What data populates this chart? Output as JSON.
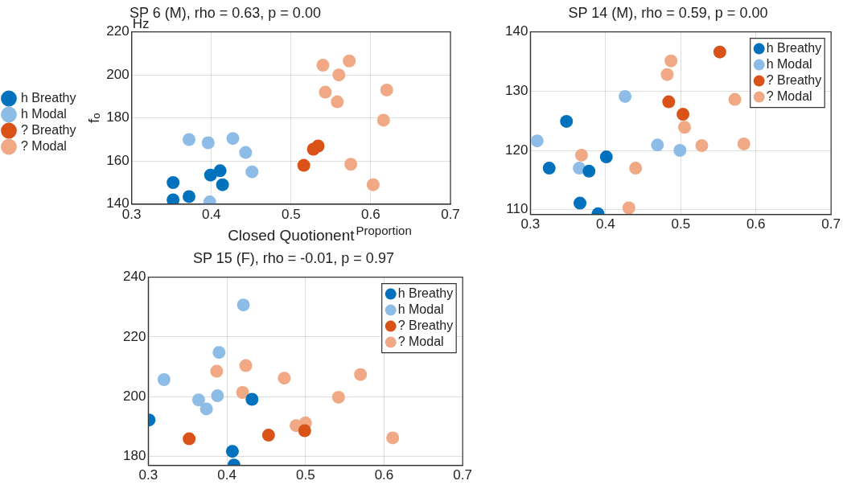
{
  "chart_data": [
    {
      "type": "scatter",
      "title": "SP 6 (M), rho = 0.63, p = 0.00",
      "xlabel": "Closed Quotionent",
      "ylabel": "fₒ",
      "annotations": [
        "Hz",
        "Proportion"
      ],
      "xlim": [
        0.3,
        0.7
      ],
      "xticks": [
        0.3,
        0.4,
        0.5,
        0.6,
        0.7
      ],
      "ylim": [
        140,
        220
      ],
      "yticks": [
        140,
        160,
        180,
        200,
        220
      ],
      "grid": true,
      "legend": "left",
      "marker": "circle",
      "series": [
        {
          "name": "h Breathy",
          "color": "#0072bd",
          "x": [
            0.352,
            0.352,
            0.372,
            0.399,
            0.411,
            0.414
          ],
          "values": [
            150,
            142,
            143.5,
            153.5,
            155.5,
            149
          ]
        },
        {
          "name": "h Modal",
          "color": "#8dbde6",
          "x": [
            0.372,
            0.396,
            0.427,
            0.443,
            0.451,
            0.398
          ],
          "values": [
            170,
            168.5,
            170.5,
            164,
            155,
            141
          ]
        },
        {
          "name": "? Breathy",
          "color": "#d95319",
          "x": [
            0.516,
            0.528,
            0.534
          ],
          "values": [
            158,
            165.5,
            167
          ]
        },
        {
          "name": "? Modal",
          "color": "#f0a984",
          "x": [
            0.54,
            0.573,
            0.56,
            0.543,
            0.558,
            0.62,
            0.616,
            0.575,
            0.603
          ],
          "values": [
            204.5,
            206.5,
            200,
            192,
            187.5,
            193,
            179,
            158.5,
            149
          ]
        }
      ]
    },
    {
      "type": "scatter",
      "title": "SP 14 (M), rho = 0.59, p = 0.00",
      "xlim": [
        0.3,
        0.7
      ],
      "xticks": [
        0.3,
        0.4,
        0.5,
        0.6,
        0.7
      ],
      "ylim": [
        109.2,
        140
      ],
      "yticks": [
        110,
        120,
        130,
        140
      ],
      "grid": true,
      "legend": "top right",
      "marker": "circle",
      "series": [
        {
          "name": "h Breathy",
          "color": "#0072bd",
          "x": [
            0.348,
            0.325,
            0.378,
            0.401,
            0.366,
            0.39
          ],
          "values": [
            124.9,
            117,
            116.5,
            118.9,
            111.1,
            109.3
          ]
        },
        {
          "name": "h Modal",
          "color": "#8dbde6",
          "x": [
            0.309,
            0.426,
            0.469,
            0.499,
            0.365
          ],
          "values": [
            121.6,
            129.1,
            120.9,
            120,
            117
          ]
        },
        {
          "name": "? Breathy",
          "color": "#d95319",
          "x": [
            0.552,
            0.484,
            0.503
          ],
          "values": [
            136.6,
            128.2,
            126.1
          ]
        },
        {
          "name": "? Modal",
          "color": "#f0a984",
          "x": [
            0.487,
            0.482,
            0.572,
            0.505,
            0.528,
            0.584,
            0.368,
            0.44,
            0.431
          ],
          "values": [
            135.1,
            132.8,
            128.6,
            123.9,
            120.8,
            121.1,
            119.2,
            117,
            110.3
          ]
        }
      ]
    },
    {
      "type": "scatter",
      "title": "SP 15 (F), rho = -0.01, p = 0.97",
      "xlim": [
        0.3,
        0.7
      ],
      "xticks": [
        0.3,
        0.4,
        0.5,
        0.6,
        0.7
      ],
      "ylim": [
        177,
        240
      ],
      "yticks": [
        180,
        200,
        220,
        240
      ],
      "grid": true,
      "legend": "top right",
      "marker": "circle",
      "series": [
        {
          "name": "h Breathy",
          "color": "#0072bd",
          "x": [
            0.301,
            0.432,
            0.407,
            0.409
          ],
          "values": [
            192.2,
            199.1,
            181.7,
            177.1
          ]
        },
        {
          "name": "h Modal",
          "color": "#8dbde6",
          "x": [
            0.421,
            0.39,
            0.32,
            0.364,
            0.388,
            0.374
          ],
          "values": [
            230.7,
            214.8,
            205.7,
            198.9,
            200.3,
            195.9
          ]
        },
        {
          "name": "? Breathy",
          "color": "#d95319",
          "x": [
            0.352,
            0.453,
            0.499
          ],
          "values": [
            185.9,
            187.1,
            188.6
          ]
        },
        {
          "name": "? Modal",
          "color": "#f0a984",
          "x": [
            0.387,
            0.424,
            0.42,
            0.473,
            0.57,
            0.542,
            0.488,
            0.5,
            0.611
          ],
          "values": [
            208.5,
            210.4,
            201.4,
            206.2,
            207.4,
            199.8,
            190.3,
            191.2,
            186.2
          ]
        }
      ]
    }
  ]
}
